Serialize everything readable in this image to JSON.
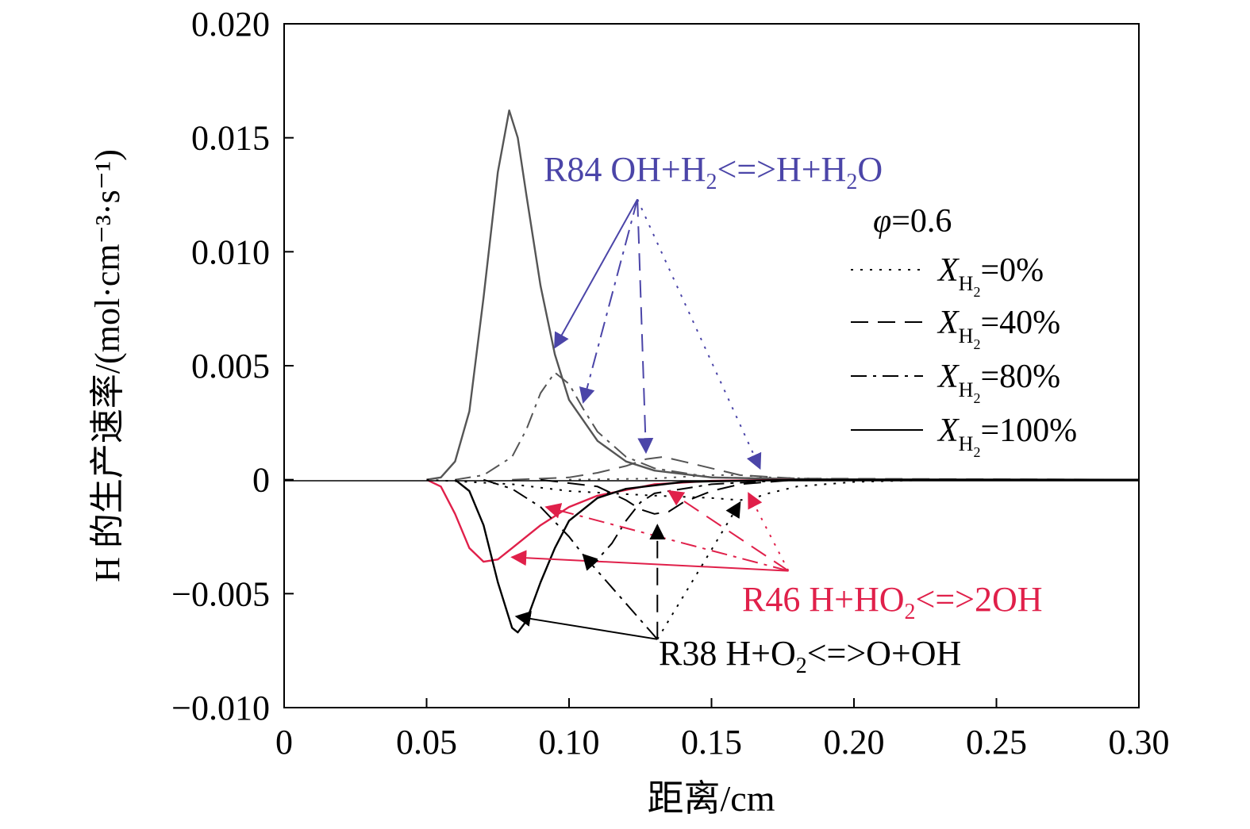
{
  "chart_data": {
    "type": "line",
    "xlabel": "距离/cm",
    "ylabel": "H 的生产速率/(mol·cm⁻³·s⁻¹)",
    "xlim": [
      0,
      0.3
    ],
    "ylim": [
      -0.01,
      0.02
    ],
    "xticks": [
      "0",
      "0.05",
      "0.10",
      "0.15",
      "0.20",
      "0.25",
      "0.30"
    ],
    "xtick_values": [
      0,
      0.05,
      0.1,
      0.15,
      0.2,
      0.25,
      0.3
    ],
    "yticks": [
      "0.020",
      "0.015",
      "0.010",
      "0.005",
      "0",
      "−0.005",
      "−0.010"
    ],
    "ytick_values": [
      0.02,
      0.015,
      0.01,
      0.005,
      0,
      -0.005,
      -0.01
    ],
    "grid": false,
    "legend": {
      "position": "top-right",
      "title_phi": "φ",
      "title_value": "=0.6",
      "entries": [
        {
          "var": "X",
          "sub": "H",
          "subsub": "2",
          "suffix": "=0%",
          "style": "dotted"
        },
        {
          "var": "X",
          "sub": "H",
          "subsub": "2",
          "suffix": "=40%",
          "style": "dashed"
        },
        {
          "var": "X",
          "sub": "H",
          "subsub": "2",
          "suffix": "=80%",
          "style": "dashdot"
        },
        {
          "var": "X",
          "sub": "H",
          "subsub": "2",
          "suffix": "=100%",
          "style": "solid"
        }
      ]
    },
    "annotations": {
      "r84": {
        "a": "R84 OH+H",
        "b": "2",
        "c": "<=>H+H",
        "d": "2",
        "e": "O",
        "color": "#4b45a8"
      },
      "r46": {
        "a": "R46 H+HO",
        "b": "2",
        "c": "<=>2OH",
        "color": "#e0204a"
      },
      "r38": {
        "a": "R38 H+O",
        "b": "2",
        "c": "<=>O+OH",
        "color": "#000000"
      }
    },
    "series": [
      {
        "reaction": "R84",
        "x_h2": "100%",
        "style": "solid",
        "color": "#555555",
        "points": [
          [
            0.05,
            0
          ],
          [
            0.055,
            0.0001
          ],
          [
            0.06,
            0.0008
          ],
          [
            0.065,
            0.003
          ],
          [
            0.07,
            0.008
          ],
          [
            0.075,
            0.0135
          ],
          [
            0.079,
            0.0162
          ],
          [
            0.082,
            0.015
          ],
          [
            0.085,
            0.0125
          ],
          [
            0.09,
            0.0085
          ],
          [
            0.095,
            0.0055
          ],
          [
            0.1,
            0.0035
          ],
          [
            0.11,
            0.0017
          ],
          [
            0.12,
            0.0008
          ],
          [
            0.13,
            0.0004
          ],
          [
            0.15,
            0.0001
          ],
          [
            0.18,
            2e-05
          ],
          [
            0.3,
            0
          ]
        ]
      },
      {
        "reaction": "R84",
        "x_h2": "80%",
        "style": "dashdot",
        "color": "#555555",
        "points": [
          [
            0.06,
            0
          ],
          [
            0.07,
            0.0002
          ],
          [
            0.08,
            0.001
          ],
          [
            0.085,
            0.0022
          ],
          [
            0.09,
            0.0038
          ],
          [
            0.095,
            0.0047
          ],
          [
            0.1,
            0.0042
          ],
          [
            0.105,
            0.0031
          ],
          [
            0.11,
            0.0021
          ],
          [
            0.12,
            0.001
          ],
          [
            0.13,
            0.0005
          ],
          [
            0.15,
            0.0001
          ],
          [
            0.2,
            0
          ],
          [
            0.3,
            0
          ]
        ]
      },
      {
        "reaction": "R84",
        "x_h2": "40%",
        "style": "dashed",
        "color": "#555555",
        "points": [
          [
            0.08,
            0
          ],
          [
            0.1,
            0.0001
          ],
          [
            0.11,
            0.0003
          ],
          [
            0.12,
            0.0006
          ],
          [
            0.127,
            0.0009
          ],
          [
            0.133,
            0.001
          ],
          [
            0.14,
            0.0008
          ],
          [
            0.15,
            0.0005
          ],
          [
            0.16,
            0.0002
          ],
          [
            0.18,
            5e-05
          ],
          [
            0.3,
            0
          ]
        ]
      },
      {
        "reaction": "R84",
        "x_h2": "0%",
        "style": "dotted",
        "color": "#555555",
        "points": [
          [
            0.1,
            0
          ],
          [
            0.13,
            5e-05
          ],
          [
            0.15,
            0.0002
          ],
          [
            0.16,
            0.0002
          ],
          [
            0.17,
            0.0001
          ],
          [
            0.2,
            0
          ],
          [
            0.3,
            0
          ]
        ]
      },
      {
        "reaction": "R46",
        "x_h2": "100%",
        "style": "solid",
        "color": "#e0204a",
        "points": [
          [
            0.05,
            0
          ],
          [
            0.055,
            -0.0003
          ],
          [
            0.06,
            -0.0015
          ],
          [
            0.065,
            -0.003
          ],
          [
            0.07,
            -0.0036
          ],
          [
            0.075,
            -0.0035
          ],
          [
            0.08,
            -0.003
          ],
          [
            0.09,
            -0.002
          ],
          [
            0.1,
            -0.0012
          ],
          [
            0.11,
            -0.0007
          ],
          [
            0.13,
            -0.0002
          ],
          [
            0.15,
            -5e-05
          ],
          [
            0.18,
            0
          ],
          [
            0.3,
            0
          ]
        ]
      },
      {
        "reaction": "R38",
        "x_h2": "100%",
        "style": "solid",
        "color": "#000000",
        "points": [
          [
            0.06,
            0
          ],
          [
            0.065,
            -0.0005
          ],
          [
            0.07,
            -0.002
          ],
          [
            0.075,
            -0.0045
          ],
          [
            0.08,
            -0.0065
          ],
          [
            0.082,
            -0.0067
          ],
          [
            0.085,
            -0.0062
          ],
          [
            0.09,
            -0.0045
          ],
          [
            0.095,
            -0.003
          ],
          [
            0.1,
            -0.0018
          ],
          [
            0.11,
            -0.0008
          ],
          [
            0.12,
            -0.0004
          ],
          [
            0.14,
            -0.0001
          ],
          [
            0.18,
            0
          ],
          [
            0.3,
            0
          ]
        ]
      },
      {
        "reaction": "R38",
        "x_h2": "80%",
        "style": "dashdot",
        "color": "#000000",
        "points": [
          [
            0.07,
            0
          ],
          [
            0.08,
            -0.0004
          ],
          [
            0.09,
            -0.0012
          ],
          [
            0.1,
            -0.0025
          ],
          [
            0.105,
            -0.0033
          ],
          [
            0.11,
            -0.0035
          ],
          [
            0.115,
            -0.0028
          ],
          [
            0.12,
            -0.0018
          ],
          [
            0.125,
            -0.001
          ],
          [
            0.13,
            -0.0006
          ],
          [
            0.15,
            -0.0002
          ],
          [
            0.18,
            0
          ],
          [
            0.3,
            0
          ]
        ]
      },
      {
        "reaction": "R38",
        "x_h2": "40%",
        "style": "dashed",
        "color": "#000000",
        "points": [
          [
            0.09,
            0
          ],
          [
            0.11,
            -0.0003
          ],
          [
            0.12,
            -0.0009
          ],
          [
            0.125,
            -0.0013
          ],
          [
            0.13,
            -0.0015
          ],
          [
            0.135,
            -0.0014
          ],
          [
            0.14,
            -0.001
          ],
          [
            0.15,
            -0.0005
          ],
          [
            0.16,
            -0.0002
          ],
          [
            0.18,
            0
          ],
          [
            0.3,
            0
          ]
        ]
      },
      {
        "reaction": "R38",
        "x_h2": "0%",
        "style": "dotted",
        "color": "#000000",
        "points": [
          [
            0.05,
            0
          ],
          [
            0.08,
            -0.0002
          ],
          [
            0.1,
            -0.0005
          ],
          [
            0.13,
            -0.0007
          ],
          [
            0.15,
            -0.0008
          ],
          [
            0.16,
            -0.0009
          ],
          [
            0.165,
            -0.0008
          ],
          [
            0.17,
            -0.0006
          ],
          [
            0.18,
            -0.0003
          ],
          [
            0.2,
            -0.0001
          ],
          [
            0.23,
            0
          ],
          [
            0.3,
            0
          ]
        ]
      }
    ]
  }
}
